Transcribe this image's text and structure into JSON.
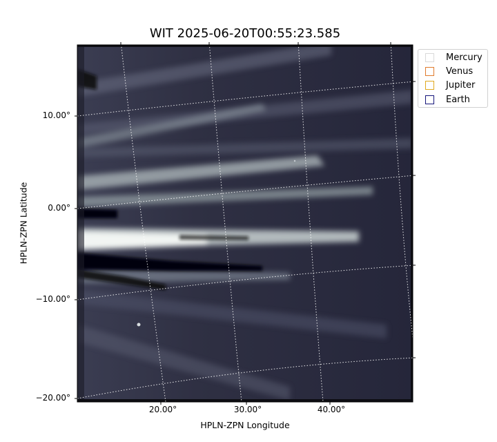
{
  "figure": {
    "title": "WIT 2025-06-20T00:55:23.585",
    "xlabel": "HPLN-ZPN Longitude",
    "ylabel": "HPLN-ZPN Latitude",
    "x_ticks": [
      "20.00°",
      "30.00°",
      "40.00°"
    ],
    "y_ticks": [
      "10.00°",
      "0.00°",
      "−10.00°",
      "−20.00°"
    ],
    "colormap": "bone (dark blue-gray to white)",
    "grid": "white dotted coordinate grid"
  },
  "legend": {
    "placement": "top-right outside plot",
    "items": [
      {
        "label": "Mercury",
        "color": "#d9d9d9"
      },
      {
        "label": "Venus",
        "color": "#e07a2c"
      },
      {
        "label": "Jupiter",
        "color": "#e0a81c"
      },
      {
        "label": "Earth",
        "color": "#14147a"
      }
    ]
  }
}
